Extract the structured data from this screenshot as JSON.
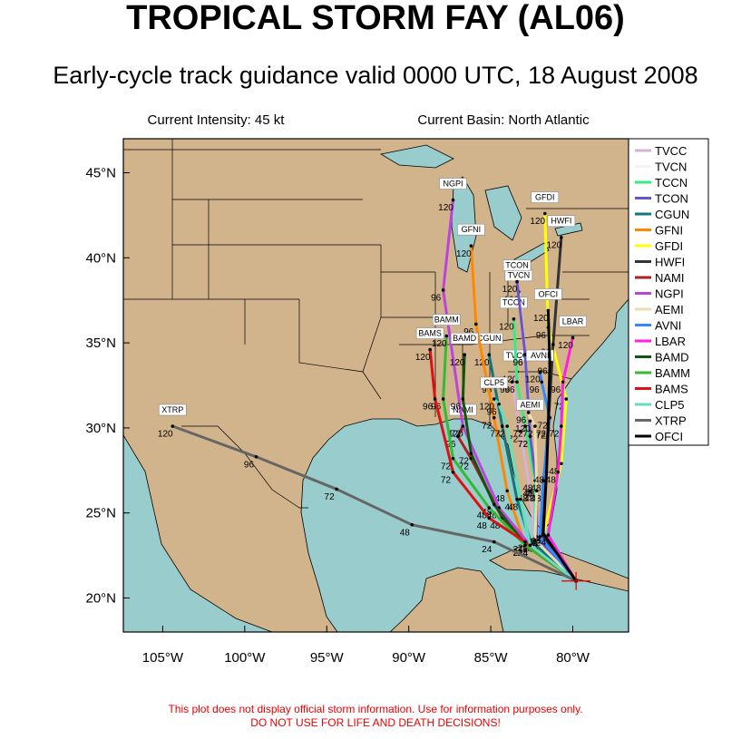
{
  "header": {
    "title": "TROPICAL STORM FAY (AL06)",
    "subtitle": "Early-cycle track guidance valid 0000 UTC, 18 August 2008",
    "intensity": "Current Intensity: 45 kt",
    "basin": "Current Basin: North Atlantic"
  },
  "map": {
    "lon_range": [
      -107.4,
      -76.6
    ],
    "lat_range": [
      18,
      47
    ],
    "lon_ticks": [
      {
        "value": -105,
        "label": "105°W"
      },
      {
        "value": -100,
        "label": "100°W"
      },
      {
        "value": -95,
        "label": "95°W"
      },
      {
        "value": -90,
        "label": "90°W"
      },
      {
        "value": -85,
        "label": "85°W"
      },
      {
        "value": -80,
        "label": "80°W"
      }
    ],
    "lat_ticks": [
      {
        "value": 20,
        "label": "20°N"
      },
      {
        "value": 25,
        "label": "25°N"
      },
      {
        "value": 30,
        "label": "30°N"
      },
      {
        "value": 35,
        "label": "35°N"
      },
      {
        "value": 40,
        "label": "40°N"
      },
      {
        "value": 45,
        "label": "45°N"
      }
    ],
    "storm_position": {
      "lon": -79.8,
      "lat": 21.0
    }
  },
  "tracks": [
    {
      "name": "TVCC",
      "color": "#d8b0d8",
      "lon": [
        -79.8,
        -82.3,
        -82.6,
        -83.2,
        -83.7,
        -83.4
      ],
      "lat": [
        21.0,
        23.3,
        26.3,
        29.8,
        32.7,
        33.3
      ],
      "hours": [
        null,
        24,
        48,
        72,
        96,
        120
      ]
    },
    {
      "name": "TVCN",
      "color": "#ffffff",
      "lon": [
        -79.8,
        -82.3,
        -82.3,
        -82.6,
        -82.9,
        -83.3
      ],
      "lat": [
        21.0,
        23.4,
        26.6,
        29.5,
        34.3,
        38.0
      ],
      "hours": [
        null,
        24,
        48,
        72,
        96,
        120
      ]
    },
    {
      "name": "TCCN",
      "color": "#33ee88",
      "lon": [
        -79.8,
        -82.3,
        -82.3,
        -82.9,
        -83.4,
        -83.6
      ],
      "lat": [
        21.0,
        23.6,
        26.9,
        30.1,
        32.7,
        36.4
      ],
      "hours": [
        null,
        24,
        48,
        72,
        96,
        120
      ]
    },
    {
      "name": "TCON",
      "color": "#6655cc",
      "lon": [
        -79.8,
        -82.2,
        -82.2,
        -82.6,
        -82.9,
        -83.4
      ],
      "lat": [
        21.0,
        23.6,
        26.6,
        29.5,
        34.3,
        38.6
      ],
      "hours": [
        null,
        24,
        48,
        72,
        96,
        120
      ]
    },
    {
      "name": "CGUN",
      "color": "#117777",
      "lon": [
        -79.8,
        -82.6,
        -83.4,
        -84.3,
        -84.8,
        -85.1
      ],
      "lat": [
        21.0,
        23.4,
        25.8,
        30.1,
        32.7,
        34.3
      ],
      "hours": [
        null,
        24,
        48,
        72,
        96,
        120
      ]
    },
    {
      "name": "GFNI",
      "color": "#ff8800",
      "lon": [
        -79.8,
        -82.9,
        -84.0,
        -84.8,
        -85.9,
        -86.2
      ],
      "lat": [
        21.0,
        23.1,
        26.3,
        30.6,
        36.1,
        40.7
      ],
      "hours": [
        null,
        24,
        48,
        72,
        96,
        120
      ]
    },
    {
      "name": "GFDI",
      "color": "#ffff00",
      "lon": [
        -79.8,
        -81.8,
        -80.7,
        -80.4,
        -81.5,
        -81.7
      ],
      "lat": [
        21.0,
        23.7,
        27.9,
        31.7,
        35.9,
        42.6
      ],
      "hours": [
        null,
        24,
        48,
        72,
        96,
        120
      ]
    },
    {
      "name": "HWFI",
      "color": "#333333",
      "lon": [
        -79.8,
        -81.9,
        -81.8,
        -81.5,
        -81.2,
        -80.7
      ],
      "lat": [
        21.0,
        23.7,
        26.3,
        30.1,
        34.9,
        41.2
      ],
      "hours": [
        null,
        24,
        48,
        72,
        96,
        120
      ]
    },
    {
      "name": "NAMI",
      "color": "#aa2222",
      "lon": [
        -79.8,
        -82.6,
        -84.3,
        -86.2,
        -87.0,
        -86.7
      ],
      "lat": [
        21.0,
        23.1,
        24.7,
        28.2,
        29.5,
        30.1
      ],
      "hours": [
        null,
        24,
        48,
        72,
        96,
        120
      ]
    },
    {
      "name": "NGPI",
      "color": "#bb44dd",
      "lon": [
        -79.8,
        -82.6,
        -84.5,
        -86.7,
        -87.9,
        -87.3
      ],
      "lat": [
        21.0,
        23.1,
        25.3,
        30.1,
        38.1,
        43.4
      ],
      "hours": [
        null,
        24,
        48,
        72,
        96,
        120
      ]
    },
    {
      "name": "AEMI",
      "color": "#eedbb0",
      "lon": [
        -79.8,
        -82.3,
        -82.2,
        -82.3,
        -82.7,
        -82.6
      ],
      "lat": [
        21.0,
        23.4,
        26.3,
        30.1,
        30.9,
        30.4
      ],
      "hours": [
        null,
        24,
        48,
        72,
        96,
        120
      ]
    },
    {
      "name": "AVNI",
      "color": "#3388ff",
      "lon": [
        -79.8,
        -82.0,
        -81.8,
        -81.4,
        -81.9,
        -82.0
      ],
      "lat": [
        21.0,
        23.6,
        26.9,
        30.6,
        32.7,
        33.3
      ],
      "hours": [
        null,
        24,
        48,
        72,
        96,
        120
      ]
    },
    {
      "name": "LBAR",
      "color": "#ff22dd",
      "lon": [
        -79.8,
        -81.5,
        -80.9,
        -80.7,
        -80.6,
        -80.0
      ],
      "lat": [
        21.0,
        23.7,
        27.4,
        30.1,
        32.7,
        35.3
      ],
      "hours": [
        null,
        24,
        48,
        72,
        96,
        120
      ]
    },
    {
      "name": "BAMD",
      "color": "#115511",
      "lon": [
        -79.8,
        -82.9,
        -84.8,
        -86.2,
        -86.7,
        -86.6
      ],
      "lat": [
        21.0,
        23.1,
        25.5,
        28.5,
        31.7,
        34.3
      ],
      "hours": [
        null,
        24,
        48,
        72,
        96,
        120
      ]
    },
    {
      "name": "BAMM",
      "color": "#33bb33",
      "lon": [
        -79.8,
        -82.9,
        -85.1,
        -87.3,
        -87.9,
        -87.7
      ],
      "lat": [
        21.0,
        23.1,
        25.3,
        28.2,
        31.7,
        35.4
      ],
      "hours": [
        null,
        24,
        48,
        72,
        96,
        120
      ]
    },
    {
      "name": "BAMS",
      "color": "#dd1111",
      "lon": [
        -79.8,
        -82.9,
        -85.1,
        -87.3,
        -88.4,
        -88.7
      ],
      "lat": [
        21.0,
        23.3,
        24.7,
        27.4,
        31.7,
        34.6
      ],
      "hours": [
        null,
        24,
        48,
        72,
        96,
        120
      ]
    },
    {
      "name": "CLP5",
      "color": "#66ddbb",
      "lon": [
        -79.8,
        -82.6,
        -83.2,
        -84.0,
        -84.5,
        -84.8
      ],
      "lat": [
        21.0,
        23.1,
        25.8,
        30.1,
        31.4,
        31.7
      ],
      "hours": [
        null,
        24,
        48,
        72,
        96,
        120
      ]
    },
    {
      "name": "XTRP",
      "color": "#666666",
      "lon": [
        -79.8,
        -84.8,
        -89.8,
        -94.4,
        -99.3,
        -104.4
      ],
      "lat": [
        21.0,
        23.3,
        24.3,
        26.4,
        28.3,
        30.1
      ],
      "hours": [
        null,
        24,
        48,
        72,
        96,
        120
      ]
    },
    {
      "name": "OFCI",
      "color": "#000000",
      "lon": [
        -79.8,
        -81.8,
        -81.6,
        -81.5,
        -81.4,
        -81.5
      ],
      "lat": [
        21.0,
        23.8,
        27.4,
        30.0,
        33.8,
        36.9
      ],
      "hours": [
        null,
        24,
        48,
        72,
        96,
        120
      ]
    }
  ],
  "disclaimer": [
    "This plot does not display official storm information. Use for information purposes only.",
    "DO NOT USE FOR LIFE AND DEATH DECISIONS!"
  ]
}
